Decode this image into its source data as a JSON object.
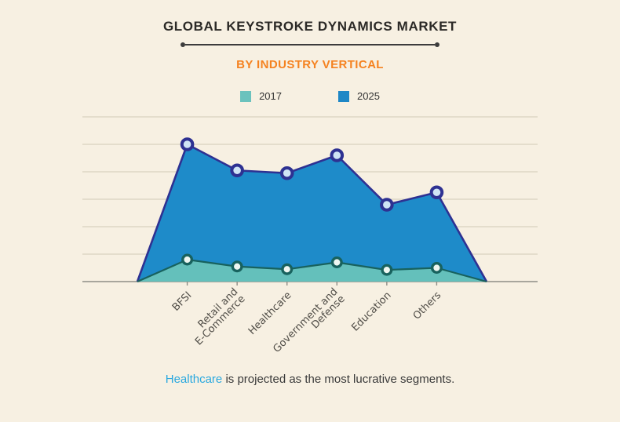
{
  "header": {
    "title": "GLOBAL KEYSTROKE DYNAMICS MARKET",
    "subtitle": "BY INDUSTRY VERTICAL"
  },
  "legend": [
    {
      "label": "2017",
      "color": "#6bc2bd"
    },
    {
      "label": "2025",
      "color": "#1e87c6"
    }
  ],
  "chart_data": {
    "type": "area",
    "title": "GLOBAL KEYSTROKE DYNAMICS MARKET",
    "subtitle": "BY INDUSTRY VERTICAL",
    "categories": [
      "BFSI",
      "Retail and\nE-Commerce",
      "Healthcare",
      "Government and\nDefense",
      "Education",
      "Others"
    ],
    "series": [
      {
        "name": "2017",
        "values": [
          1.6,
          1.1,
          0.9,
          1.4,
          0.85,
          1.0
        ],
        "fill": "#64c0bb",
        "stroke": "#18625e",
        "marker_fill": "#eef6f1"
      },
      {
        "name": "2025",
        "values": [
          10,
          8.1,
          7.9,
          9.2,
          5.6,
          6.5
        ],
        "fill": "#1e8bc9",
        "stroke": "#2e3192",
        "marker_fill": "#cfe4f5"
      }
    ],
    "ylim": [
      0,
      12
    ],
    "gridlines": 6,
    "grid_on": true,
    "legend_position": "top"
  },
  "footer": {
    "highlight": "Healthcare",
    "text": " is projected as the most lucrative segments."
  },
  "colors": {
    "background": "#f7f0e2",
    "title": "#2b2926",
    "subtitle": "#f58220",
    "footer_highlight": "#29a8df",
    "grid": "#d9d1bf",
    "axis": "#8e8d86",
    "label": "#514e48"
  }
}
